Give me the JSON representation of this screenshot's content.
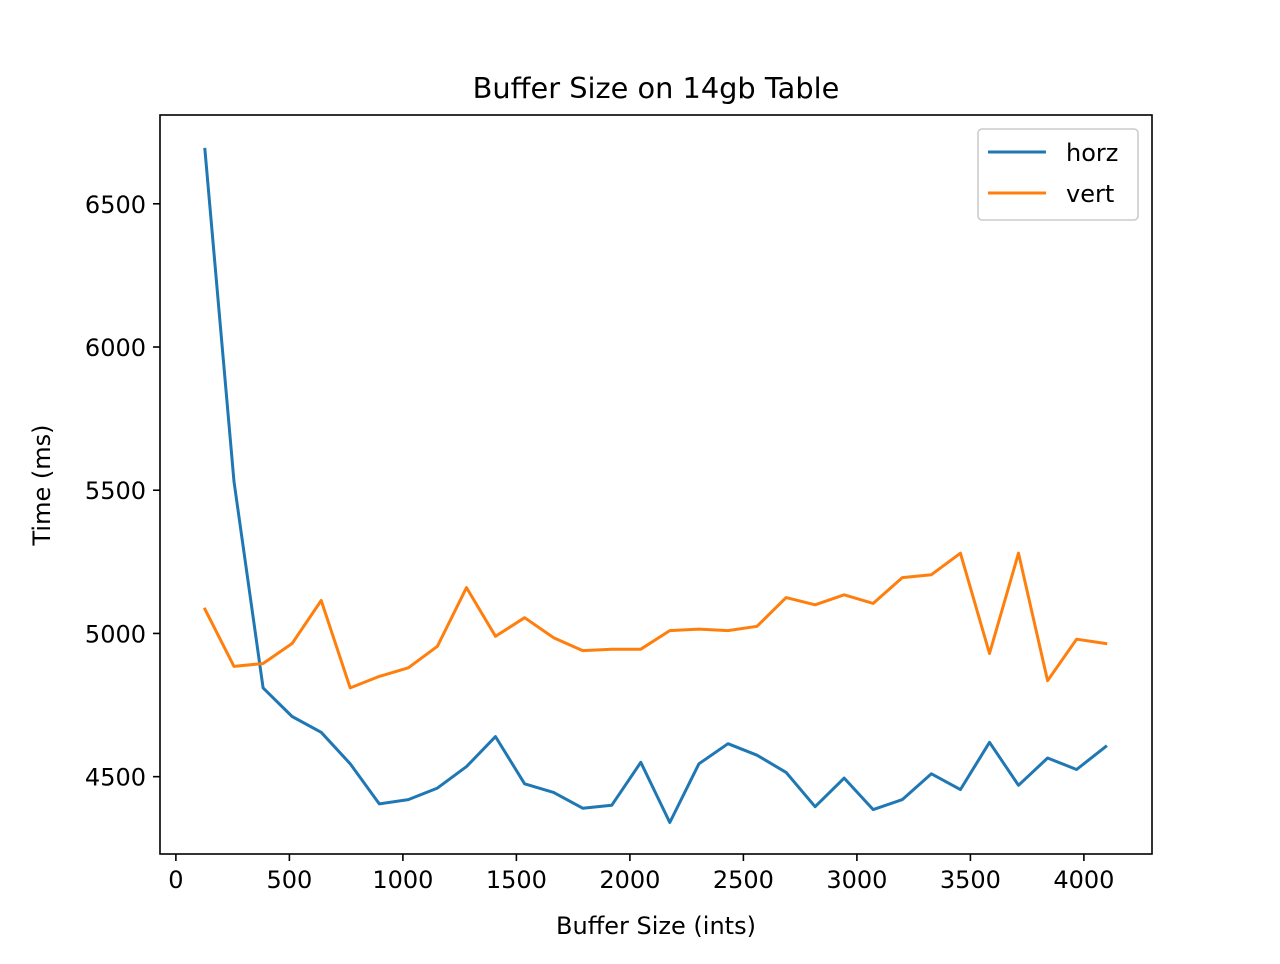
{
  "chart_data": {
    "type": "line",
    "title": "Buffer Size on 14gb Table",
    "xlabel": "Buffer Size (ints)",
    "ylabel": "Time (ms)",
    "xlim": [
      -70,
      4300
    ],
    "ylim": [
      4230,
      6810
    ],
    "xticks": [
      0,
      500,
      1000,
      1500,
      2000,
      2500,
      3000,
      3500,
      4000
    ],
    "yticks": [
      4500,
      5000,
      5500,
      6000,
      6500
    ],
    "grid": false,
    "legend_position": "upper right",
    "x": [
      128,
      256,
      384,
      512,
      640,
      768,
      896,
      1024,
      1152,
      1280,
      1408,
      1536,
      1664,
      1792,
      1920,
      2048,
      2176,
      2304,
      2432,
      2560,
      2688,
      2816,
      2944,
      3072,
      3200,
      3328,
      3456,
      3584,
      3712,
      3840,
      3968,
      4096
    ],
    "series": [
      {
        "name": "horz",
        "color": "#1f77b4",
        "values": [
          6690,
          5530,
          4810,
          4710,
          4655,
          4545,
          4405,
          4420,
          4460,
          4535,
          4640,
          4475,
          4445,
          4390,
          4400,
          4550,
          4340,
          4545,
          4615,
          4575,
          4515,
          4395,
          4495,
          4385,
          4420,
          4510,
          4455,
          4620,
          4470,
          4565,
          4525,
          4605
        ]
      },
      {
        "name": "vert",
        "color": "#ff7f0e",
        "values": [
          5085,
          4885,
          4895,
          4965,
          5115,
          4810,
          4850,
          4880,
          4955,
          5160,
          4990,
          5055,
          4985,
          4940,
          4945,
          4945,
          5010,
          5015,
          5010,
          5025,
          5125,
          5100,
          5135,
          5105,
          5195,
          5205,
          5280,
          4930,
          5280,
          4835,
          4980,
          4965
        ]
      }
    ]
  }
}
